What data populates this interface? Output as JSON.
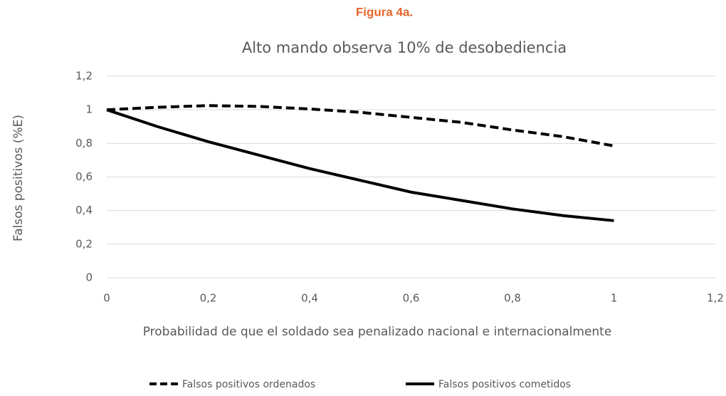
{
  "chart_data": {
    "type": "line",
    "figure_label": "Figura 4a.",
    "title": "Alto mando observa 10% de desobediencia",
    "xlabel": "Probabilidad de que el soldado sea penalizado nacional e internacionalmente",
    "ylabel": "Falsos positivos (%E)",
    "x": [
      0,
      0.1,
      0.2,
      0.3,
      0.4,
      0.5,
      0.6,
      0.7,
      0.8,
      0.9,
      1
    ],
    "series": [
      {
        "name": "Falsos positivos ordenados",
        "color": "#000000",
        "line_style": "dashed",
        "values": [
          1.0,
          1.015,
          1.025,
          1.02,
          1.005,
          0.985,
          0.955,
          0.925,
          0.88,
          0.84,
          0.785
        ]
      },
      {
        "name": "Falsos positivos cometidos",
        "color": "#000000",
        "line_style": "solid",
        "values": [
          1.0,
          0.9,
          0.81,
          0.73,
          0.65,
          0.58,
          0.51,
          0.46,
          0.41,
          0.37,
          0.34
        ]
      }
    ],
    "xlim": [
      0,
      1.2
    ],
    "xticks": [
      0,
      {
        "value": 0.2,
        "label": "0,2"
      },
      {
        "value": 0.4,
        "label": "0,4"
      },
      {
        "value": 0.6,
        "label": "0,6"
      },
      {
        "value": 0.8,
        "label": "0,8"
      },
      1,
      {
        "value": 1.2,
        "label": "1,2"
      }
    ],
    "ylim": [
      0,
      1.2
    ],
    "yticks": [
      0,
      {
        "value": 0.2,
        "label": "0,2"
      },
      {
        "value": 0.4,
        "label": "0,4"
      },
      {
        "value": 0.6,
        "label": "0,6"
      },
      {
        "value": 0.8,
        "label": "0,8"
      },
      1,
      {
        "value": 1.2,
        "label": "1,2"
      }
    ],
    "grid": true,
    "legend": "bottom"
  }
}
